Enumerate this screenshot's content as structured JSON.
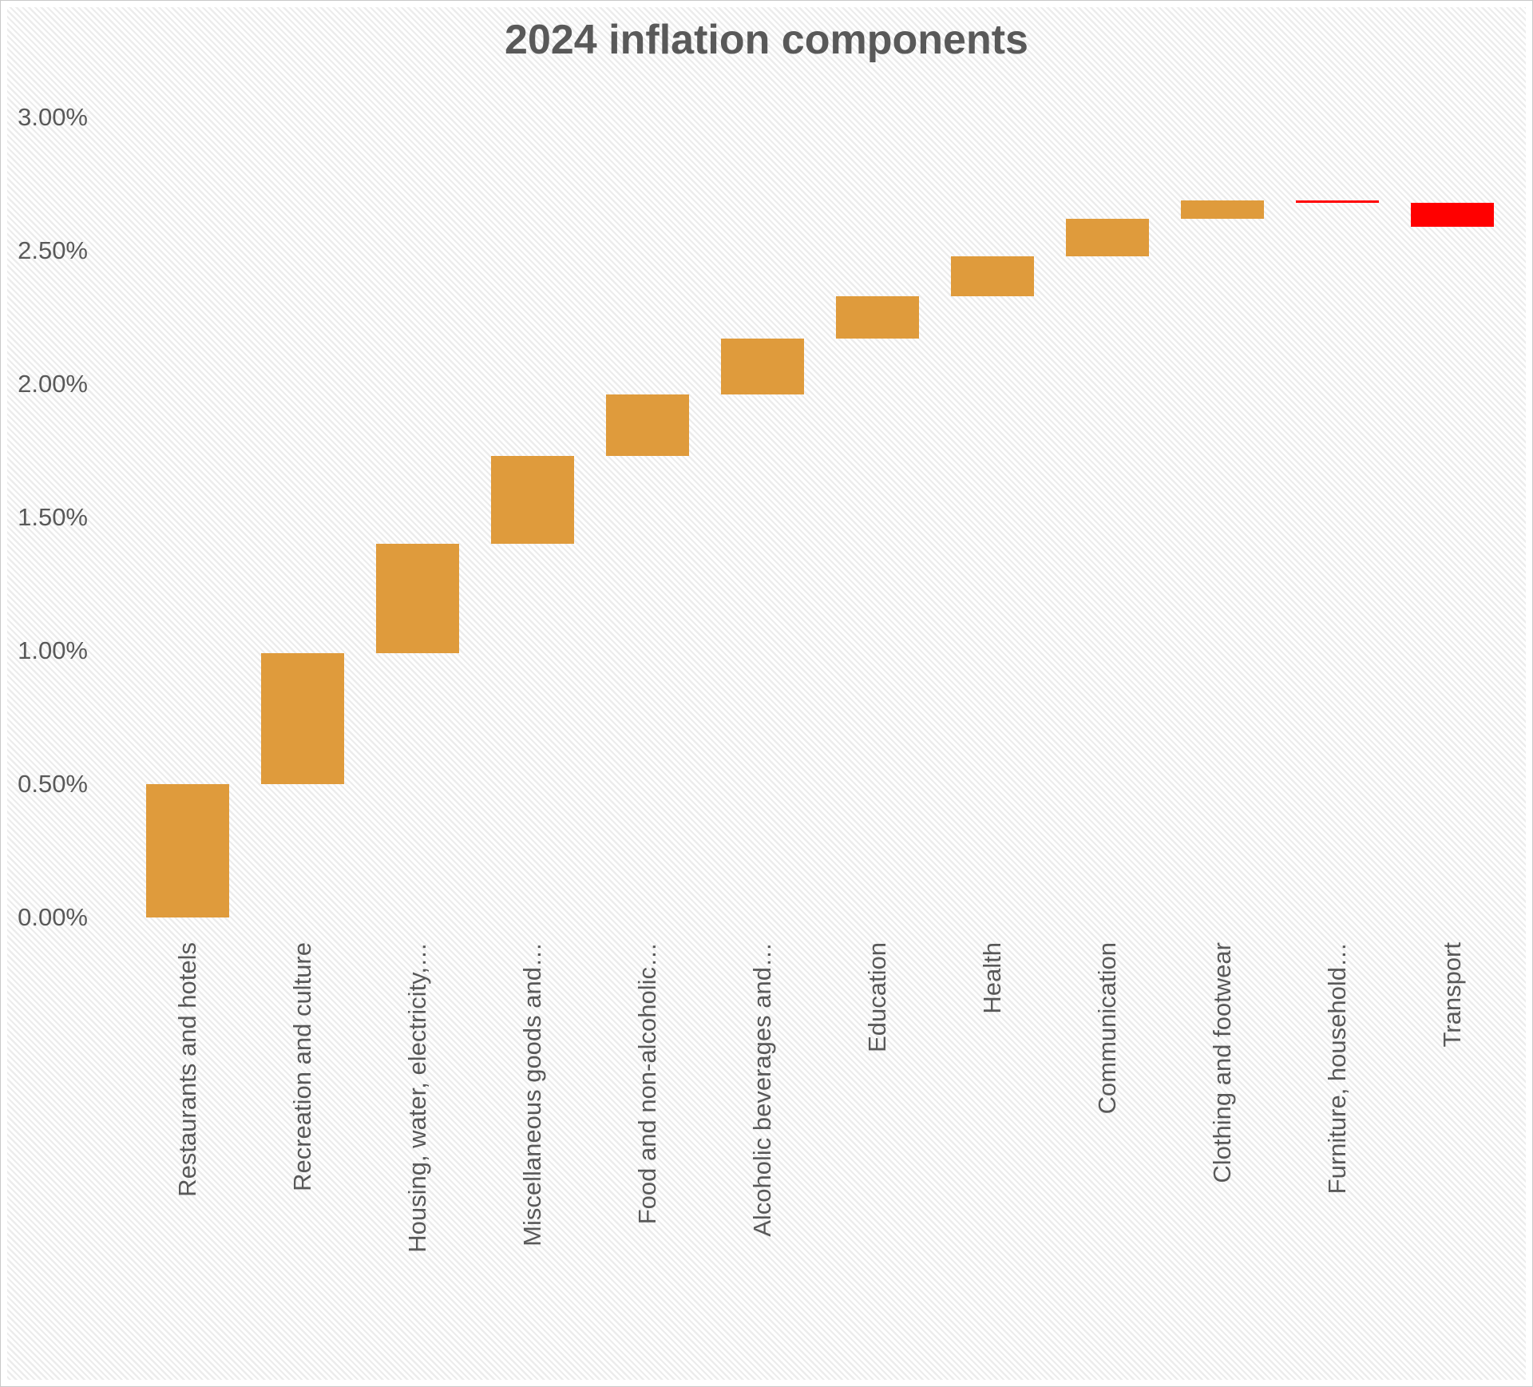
{
  "chart_data": {
    "type": "bar",
    "subtype": "waterfall",
    "title": "2024 inflation components",
    "categories": [
      "Restaurants and hotels",
      "Recreation and culture",
      "Housing, water, electricity,…",
      "Miscellaneous goods and…",
      "Food and non-alcoholic…",
      "Alcoholic beverages and…",
      "Education",
      "Health",
      "Communication",
      "Clothing and footwear",
      "Furniture, household…",
      "Transport"
    ],
    "values": [
      0.5,
      0.49,
      0.41,
      0.33,
      0.23,
      0.21,
      0.16,
      0.15,
      0.14,
      0.07,
      -0.01,
      -0.09
    ],
    "cumulative": [
      0.5,
      0.99,
      1.4,
      1.73,
      1.96,
      2.17,
      2.33,
      2.48,
      2.62,
      2.69,
      2.68,
      2.59
    ],
    "final_total": 2.59,
    "unit": "%",
    "y_axis": {
      "min": 0,
      "max": 3,
      "step": 0.5,
      "tick_labels": [
        "3.00%",
        "2.50%",
        "2.00%",
        "1.50%",
        "1.00%",
        "0.50%",
        "0.00%"
      ]
    },
    "colors": {
      "increase": "#DF9B3C",
      "decrease": "#FF0000",
      "text": "#595959"
    },
    "grid": false,
    "legend": false,
    "x_labels_rotation_deg": 90
  }
}
